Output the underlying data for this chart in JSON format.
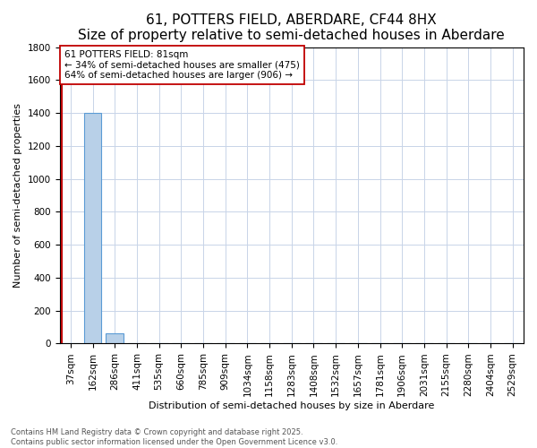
{
  "title": "61, POTTERS FIELD, ABERDARE, CF44 8HX",
  "subtitle": "Size of property relative to semi-detached houses in Aberdare",
  "xlabel": "Distribution of semi-detached houses by size in Aberdare",
  "ylabel": "Number of semi-detached properties",
  "categories": [
    "37sqm",
    "162sqm",
    "286sqm",
    "411sqm",
    "535sqm",
    "660sqm",
    "785sqm",
    "909sqm",
    "1034sqm",
    "1158sqm",
    "1283sqm",
    "1408sqm",
    "1532sqm",
    "1657sqm",
    "1781sqm",
    "1906sqm",
    "2031sqm",
    "2155sqm",
    "2280sqm",
    "2404sqm",
    "2529sqm"
  ],
  "values": [
    0,
    1400,
    60,
    0,
    0,
    0,
    0,
    0,
    0,
    0,
    0,
    0,
    0,
    0,
    0,
    0,
    0,
    0,
    0,
    0,
    0
  ],
  "bar_color": "#b8d0e8",
  "bar_edge_color": "#5b9bd5",
  "property_line_color": "#c00000",
  "annotation_text": "61 POTTERS FIELD: 81sqm\n← 34% of semi-detached houses are smaller (475)\n64% of semi-detached houses are larger (906) →",
  "annotation_box_color": "#ffffff",
  "annotation_box_edge_color": "#c00000",
  "ylim": [
    0,
    1800
  ],
  "yticks": [
    0,
    200,
    400,
    600,
    800,
    1000,
    1200,
    1400,
    1600,
    1800
  ],
  "footer_text": "Contains HM Land Registry data © Crown copyright and database right 2025.\nContains public sector information licensed under the Open Government Licence v3.0.",
  "background_color": "#ffffff",
  "grid_color": "#c8d4e8",
  "title_fontsize": 11,
  "axis_fontsize": 8,
  "tick_fontsize": 7.5,
  "annotation_fontsize": 7.5,
  "footer_fontsize": 6
}
